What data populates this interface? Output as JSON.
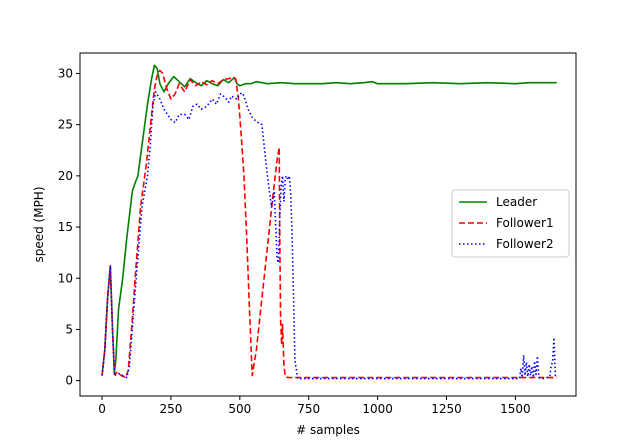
{
  "chart_data": {
    "type": "line",
    "title": "",
    "xlabel": "# samples",
    "ylabel": "speed (MPH)",
    "xlim": [
      -80,
      1720
    ],
    "ylim": [
      -1.5,
      32
    ],
    "xticks": [
      0,
      250,
      500,
      750,
      1000,
      1250,
      1500
    ],
    "yticks": [
      0,
      5,
      10,
      15,
      20,
      25,
      30
    ],
    "grid": false,
    "legend_position": "center-right",
    "series": [
      {
        "name": "Leader",
        "color": "#008000",
        "style": "solid",
        "points": [
          [
            0,
            0.5
          ],
          [
            10,
            3
          ],
          [
            20,
            8
          ],
          [
            30,
            11.2
          ],
          [
            38,
            5
          ],
          [
            45,
            0.8
          ],
          [
            50,
            2
          ],
          [
            60,
            7
          ],
          [
            75,
            10
          ],
          [
            90,
            14
          ],
          [
            110,
            18.5
          ],
          [
            120,
            19.3
          ],
          [
            130,
            20
          ],
          [
            150,
            24
          ],
          [
            165,
            27
          ],
          [
            180,
            29.5
          ],
          [
            190,
            30.8
          ],
          [
            200,
            30.5
          ],
          [
            210,
            29
          ],
          [
            225,
            28.2
          ],
          [
            240,
            29
          ],
          [
            260,
            29.7
          ],
          [
            280,
            29.2
          ],
          [
            300,
            28.7
          ],
          [
            320,
            29.5
          ],
          [
            340,
            29.1
          ],
          [
            360,
            28.8
          ],
          [
            380,
            29.3
          ],
          [
            400,
            29
          ],
          [
            420,
            28.8
          ],
          [
            440,
            29.4
          ],
          [
            460,
            29.1
          ],
          [
            480,
            29.6
          ],
          [
            490,
            29
          ],
          [
            500,
            28.8
          ],
          [
            520,
            29
          ],
          [
            540,
            29
          ],
          [
            560,
            29.2
          ],
          [
            600,
            29
          ],
          [
            650,
            29.1
          ],
          [
            700,
            29
          ],
          [
            800,
            29
          ],
          [
            850,
            29.1
          ],
          [
            900,
            29
          ],
          [
            950,
            29.1
          ],
          [
            980,
            29.2
          ],
          [
            1000,
            29
          ],
          [
            1100,
            29
          ],
          [
            1200,
            29.1
          ],
          [
            1300,
            29
          ],
          [
            1400,
            29.1
          ],
          [
            1500,
            29
          ],
          [
            1550,
            29.1
          ],
          [
            1600,
            29.1
          ],
          [
            1650,
            29.1
          ]
        ]
      },
      {
        "name": "Follower1",
        "color": "#ff0000",
        "style": "dashed",
        "points": [
          [
            0,
            0.5
          ],
          [
            10,
            3
          ],
          [
            20,
            8
          ],
          [
            30,
            11.2
          ],
          [
            38,
            5
          ],
          [
            45,
            0.6
          ],
          [
            55,
            0.8
          ],
          [
            70,
            0.5
          ],
          [
            85,
            0.3
          ],
          [
            95,
            1
          ],
          [
            110,
            6
          ],
          [
            120,
            10
          ],
          [
            140,
            17
          ],
          [
            160,
            21
          ],
          [
            180,
            26
          ],
          [
            190,
            28.5
          ],
          [
            200,
            29.8
          ],
          [
            210,
            30.3
          ],
          [
            220,
            30
          ],
          [
            235,
            28.5
          ],
          [
            250,
            27.5
          ],
          [
            265,
            28
          ],
          [
            280,
            29
          ],
          [
            300,
            28.2
          ],
          [
            320,
            29.4
          ],
          [
            340,
            28.8
          ],
          [
            360,
            29.2
          ],
          [
            380,
            28.9
          ],
          [
            400,
            29.3
          ],
          [
            420,
            29
          ],
          [
            440,
            29.4
          ],
          [
            460,
            29.5
          ],
          [
            475,
            29.6
          ],
          [
            485,
            29.5
          ],
          [
            495,
            27.5
          ],
          [
            505,
            24
          ],
          [
            515,
            20
          ],
          [
            525,
            14
          ],
          [
            535,
            7
          ],
          [
            545,
            0.5
          ],
          [
            560,
            3
          ],
          [
            580,
            8
          ],
          [
            600,
            13
          ],
          [
            620,
            18
          ],
          [
            635,
            21.5
          ],
          [
            643,
            22.8
          ],
          [
            645,
            14
          ],
          [
            648,
            6
          ],
          [
            652,
            3.5
          ],
          [
            655,
            5.5
          ],
          [
            660,
            1.5
          ],
          [
            665,
            0.4
          ],
          [
            675,
            0.3
          ],
          [
            700,
            0.3
          ],
          [
            800,
            0.3
          ],
          [
            900,
            0.3
          ],
          [
            1000,
            0.3
          ],
          [
            1100,
            0.3
          ],
          [
            1200,
            0.3
          ],
          [
            1300,
            0.3
          ],
          [
            1400,
            0.3
          ],
          [
            1500,
            0.3
          ],
          [
            1600,
            0.3
          ],
          [
            1650,
            0.3
          ]
        ]
      },
      {
        "name": "Follower2",
        "color": "#0000ff",
        "style": "dotted",
        "points": [
          [
            0,
            0.5
          ],
          [
            10,
            3
          ],
          [
            20,
            8
          ],
          [
            30,
            11.2
          ],
          [
            38,
            5
          ],
          [
            45,
            0.5
          ],
          [
            60,
            0.7
          ],
          [
            75,
            0.5
          ],
          [
            90,
            0.3
          ],
          [
            100,
            1.5
          ],
          [
            115,
            7
          ],
          [
            130,
            12
          ],
          [
            145,
            17
          ],
          [
            165,
            20
          ],
          [
            175,
            23
          ],
          [
            185,
            27
          ],
          [
            195,
            28.2
          ],
          [
            210,
            27.5
          ],
          [
            225,
            26.5
          ],
          [
            250,
            25.5
          ],
          [
            265,
            25.2
          ],
          [
            280,
            26
          ],
          [
            300,
            26
          ],
          [
            315,
            25.5
          ],
          [
            330,
            26.8
          ],
          [
            345,
            27
          ],
          [
            360,
            26.5
          ],
          [
            380,
            26.8
          ],
          [
            400,
            27.5
          ],
          [
            415,
            27
          ],
          [
            430,
            28
          ],
          [
            445,
            27.7
          ],
          [
            460,
            27.2
          ],
          [
            470,
            27.8
          ],
          [
            480,
            27.6
          ],
          [
            490,
            27.5
          ],
          [
            500,
            28
          ],
          [
            510,
            28.1
          ],
          [
            520,
            27.4
          ],
          [
            530,
            26.5
          ],
          [
            545,
            25.7
          ],
          [
            560,
            25.3
          ],
          [
            580,
            25
          ],
          [
            600,
            20
          ],
          [
            615,
            17
          ],
          [
            625,
            18.5
          ],
          [
            635,
            12
          ],
          [
            640,
            11.5
          ],
          [
            645,
            16
          ],
          [
            650,
            19
          ],
          [
            655,
            20
          ],
          [
            660,
            17.5
          ],
          [
            665,
            19.8
          ],
          [
            670,
            20
          ],
          [
            675,
            19.6
          ],
          [
            680,
            20
          ],
          [
            685,
            18
          ],
          [
            690,
            14
          ],
          [
            700,
            2
          ],
          [
            710,
            0.2
          ],
          [
            720,
            0.2
          ],
          [
            800,
            0.2
          ],
          [
            900,
            0.2
          ],
          [
            1000,
            0.2
          ],
          [
            1100,
            0.2
          ],
          [
            1200,
            0.2
          ],
          [
            1300,
            0.2
          ],
          [
            1400,
            0.2
          ],
          [
            1500,
            0.2
          ],
          [
            1515,
            0.2
          ],
          [
            1520,
            1.2
          ],
          [
            1525,
            0.3
          ],
          [
            1530,
            2.5
          ],
          [
            1535,
            0.5
          ],
          [
            1540,
            1.8
          ],
          [
            1545,
            0.4
          ],
          [
            1550,
            1.6
          ],
          [
            1555,
            0.5
          ],
          [
            1560,
            1.4
          ],
          [
            1565,
            0.3
          ],
          [
            1570,
            1.9
          ],
          [
            1575,
            0.6
          ],
          [
            1580,
            2.4
          ],
          [
            1585,
            0.4
          ],
          [
            1590,
            0.2
          ],
          [
            1600,
            0.2
          ],
          [
            1615,
            0.3
          ],
          [
            1625,
            0.4
          ],
          [
            1630,
            1.5
          ],
          [
            1635,
            1.8
          ],
          [
            1640,
            4.2
          ],
          [
            1645,
            0.5
          ],
          [
            1650,
            0.3
          ]
        ]
      }
    ]
  }
}
